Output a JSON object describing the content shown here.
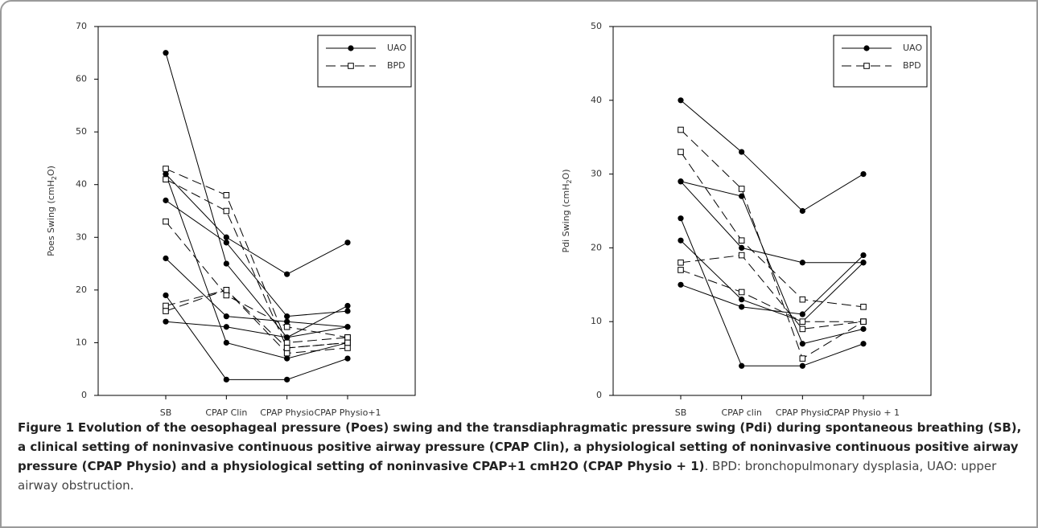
{
  "chart_data": [
    {
      "type": "line",
      "categories": [
        "SB",
        "CPAP Clin",
        "CPAP Physio",
        "CPAP Physio+1"
      ],
      "ylabel": [
        "Poes Swing (cmH",
        "2",
        "O)"
      ],
      "ylim": [
        0,
        70
      ],
      "yticks": [
        0,
        10,
        20,
        30,
        40,
        50,
        60,
        70
      ],
      "legend": "upper right",
      "series": [
        {
          "name": "UAO",
          "color": "#000000",
          "dash": false,
          "marker": "filled-circle",
          "lines": [
            [
              65,
              25,
              11,
              17
            ],
            [
              42,
              30,
              23,
              29
            ],
            [
              37,
              29,
              15,
              16
            ],
            [
              26,
              15,
              14,
              13
            ],
            [
              19,
              3,
              3,
              7
            ],
            [
              14,
              13,
              11,
              13
            ],
            [
              42,
              10,
              7,
              10
            ]
          ]
        },
        {
          "name": "BPD",
          "color": "#000000",
          "dash": true,
          "marker": "open-square",
          "lines": [
            [
              43,
              38,
              10,
              11
            ],
            [
              41,
              35,
              9,
              10
            ],
            [
              33,
              19,
              13,
              11
            ],
            [
              17,
              20,
              8,
              9
            ],
            [
              16,
              20,
              9,
              10
            ]
          ]
        }
      ]
    },
    {
      "type": "line",
      "categories": [
        "SB",
        "CPAP clin",
        "CPAP Physio",
        "CPAP Physio + 1"
      ],
      "ylabel": [
        "Pdi Swing (cmH",
        "2",
        "O)"
      ],
      "ylim": [
        0,
        50
      ],
      "yticks": [
        0,
        10,
        20,
        30,
        40,
        50
      ],
      "legend": "upper right",
      "series": [
        {
          "name": "UAO",
          "color": "#000000",
          "dash": false,
          "marker": "filled-circle",
          "lines": [
            [
              40,
              33,
              25,
              30
            ],
            [
              29,
              27,
              7,
              9
            ],
            [
              24,
              4,
              4,
              7
            ],
            [
              21,
              13,
              10,
              18
            ],
            [
              15,
              12,
              11,
              19
            ],
            [
              29,
              20,
              18,
              18
            ]
          ]
        },
        {
          "name": "BPD",
          "color": "#000000",
          "dash": true,
          "marker": "open-square",
          "lines": [
            [
              36,
              28,
              5,
              10
            ],
            [
              33,
              21,
              13,
              12
            ],
            [
              18,
              19,
              9,
              10
            ],
            [
              17,
              14,
              10,
              10
            ]
          ]
        }
      ]
    }
  ],
  "caption": {
    "label": "Figure 1",
    "title": "Evolution of the oesophageal pressure (Poes) swing and the transdiaphragmatic pressure swing (Pdi) during spontaneous breathing (SB), a clinical setting of noninvasive continuous positive airway pressure (CPAP Clin), a physiological setting of noninvasive continuous positive airway pressure (CPAP Physio) and a physiological setting of noninvasive CPAP+1 cmH2O (CPAP Physio + 1)",
    "text": ". BPD: bronchopulmonary dysplasia, UAO: upper airway obstruction."
  }
}
